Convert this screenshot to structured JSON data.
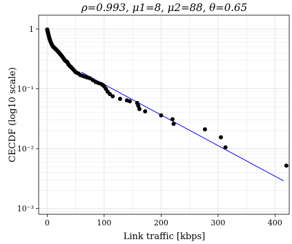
{
  "chart_data": {
    "type": "scatter",
    "title": "ρ=0.993,  μ1=8,  μ2=88,  θ=0.65",
    "xlabel": "Link traffic [kbps]",
    "ylabel": "CECDF (log10 scale)",
    "x_scale": "linear",
    "y_scale": "log10",
    "xlim": [
      -15,
      425
    ],
    "ylim": [
      0.0008,
      1.7
    ],
    "x_ticks": [
      0,
      100,
      200,
      300,
      400
    ],
    "x_tick_labels": [
      "0",
      "100",
      "200",
      "300",
      "400"
    ],
    "y_ticks": [
      0.001,
      0.01,
      0.1,
      1
    ],
    "y_tick_labels": [
      "10⁻³",
      "10⁻²",
      "10⁻¹",
      "1"
    ],
    "grid": true,
    "colors": {
      "points": "#000000",
      "fit_line": "#0000ee",
      "grid": "#e6e6e6"
    },
    "points": {
      "x": [
        0,
        0.3,
        0.6,
        1,
        1.3,
        1.7,
        2,
        2.5,
        3,
        3.5,
        4,
        4.5,
        5,
        5.5,
        6,
        7,
        8,
        9,
        10,
        11,
        12,
        13,
        14,
        15,
        16,
        17,
        18,
        19,
        20,
        21,
        22,
        23,
        24,
        25,
        26,
        27,
        28,
        29,
        30,
        31,
        32,
        33,
        34,
        35,
        36,
        37,
        38,
        40,
        42,
        44,
        46,
        48,
        50,
        52,
        55,
        58,
        62,
        66,
        70,
        75,
        80,
        85,
        90,
        95,
        98,
        100,
        103,
        106,
        110,
        115,
        128,
        140,
        145,
        158,
        160,
        162,
        172,
        200,
        220,
        222,
        277,
        305,
        313,
        420
      ],
      "y": [
        0.98,
        0.96,
        0.93,
        0.9,
        0.87,
        0.84,
        0.81,
        0.78,
        0.75,
        0.72,
        0.69,
        0.67,
        0.65,
        0.63,
        0.61,
        0.58,
        0.55,
        0.53,
        0.51,
        0.5,
        0.49,
        0.48,
        0.47,
        0.46,
        0.45,
        0.44,
        0.43,
        0.42,
        0.41,
        0.4,
        0.39,
        0.38,
        0.37,
        0.36,
        0.35,
        0.34,
        0.33,
        0.32,
        0.31,
        0.3,
        0.295,
        0.29,
        0.285,
        0.28,
        0.27,
        0.26,
        0.25,
        0.24,
        0.23,
        0.22,
        0.21,
        0.2,
        0.19,
        0.185,
        0.18,
        0.17,
        0.165,
        0.16,
        0.155,
        0.15,
        0.14,
        0.13,
        0.125,
        0.12,
        0.115,
        0.11,
        0.1,
        0.09,
        0.082,
        0.075,
        0.068,
        0.064,
        0.062,
        0.058,
        0.052,
        0.046,
        0.042,
        0.036,
        0.031,
        0.026,
        0.021,
        0.0155,
        0.0105,
        0.0052
      ]
    },
    "fit_line": {
      "x": [
        60,
        415
      ],
      "y": [
        0.19,
        0.0029
      ]
    }
  }
}
